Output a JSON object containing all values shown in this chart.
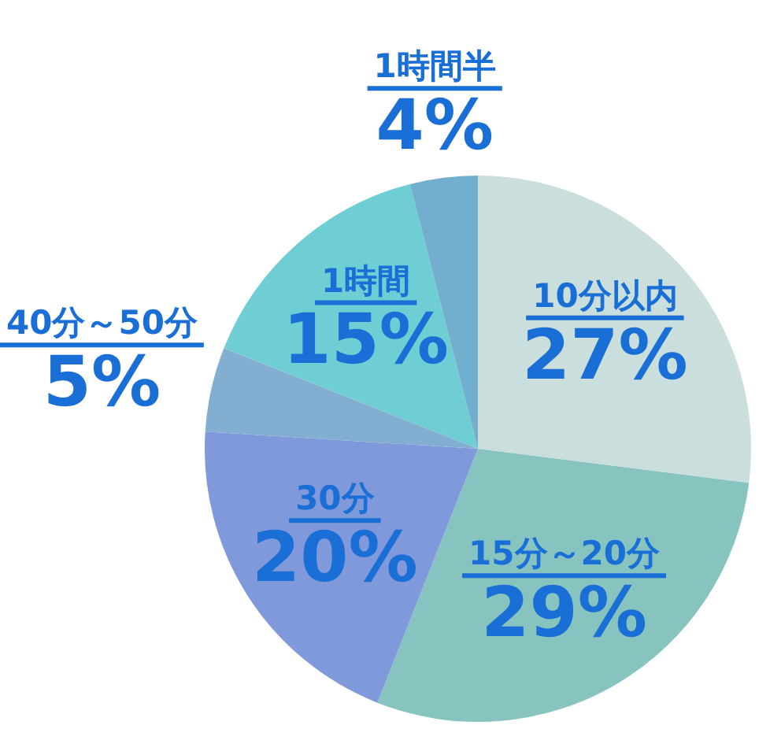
{
  "chart_data": {
    "type": "pie",
    "categories": [
      "10分以内",
      "15分～20分",
      "30分",
      "40分～50分",
      "1時間",
      "1時間半"
    ],
    "values": [
      27,
      29,
      20,
      5,
      15,
      4
    ],
    "value_labels": [
      "27%",
      "29%",
      "20%",
      "5%",
      "15%",
      "4%"
    ],
    "colors": [
      "#c9dedd",
      "#87c4bf",
      "#7f99db",
      "#82aed2",
      "#6fcdd4",
      "#72aecd"
    ],
    "legend": false
  }
}
